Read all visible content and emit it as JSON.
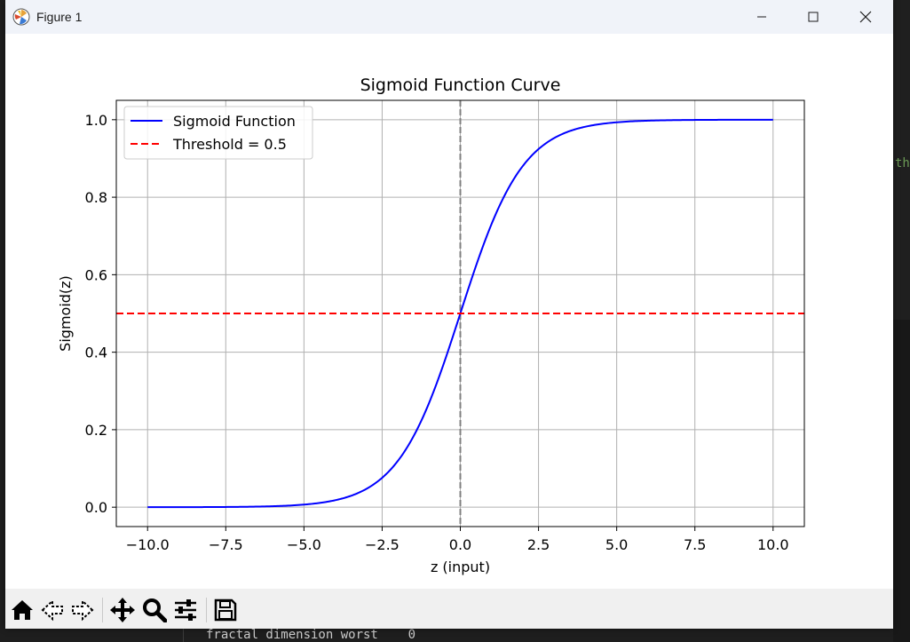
{
  "window": {
    "title": "Figure 1"
  },
  "background": {
    "code_fragment_right": "th",
    "code_fragment_bottom": "fractal dimension worst    0"
  },
  "toolbar": {
    "buttons": [
      "home-icon",
      "back-icon",
      "forward-icon",
      "pan-icon",
      "zoom-icon",
      "configure-subplots-icon",
      "save-icon"
    ]
  },
  "chart_data": {
    "type": "line",
    "title": "Sigmoid Function Curve",
    "xlabel": "z (input)",
    "ylabel": "Sigmoid(z)",
    "xlim": [
      -11,
      11
    ],
    "ylim": [
      -0.05,
      1.05
    ],
    "xticks": [
      -10.0,
      -7.5,
      -5.0,
      -2.5,
      0.0,
      2.5,
      5.0,
      7.5,
      10.0
    ],
    "xtick_labels": [
      "−10.0",
      "−7.5",
      "−5.0",
      "−2.5",
      "0.0",
      "2.5",
      "5.0",
      "7.5",
      "10.0"
    ],
    "yticks": [
      0.0,
      0.2,
      0.4,
      0.6,
      0.8,
      1.0
    ],
    "ytick_labels": [
      "0.0",
      "0.2",
      "0.4",
      "0.6",
      "0.8",
      "1.0"
    ],
    "grid": true,
    "legend_position": "top-left",
    "series": [
      {
        "name": "Sigmoid Function",
        "color": "#0000ff",
        "style": "solid",
        "function": "sigmoid",
        "x_range": [
          -10,
          10
        ]
      },
      {
        "name": "Threshold = 0.5",
        "color": "#ff0000",
        "style": "dashed",
        "type": "hline",
        "y": 0.5
      }
    ],
    "reference_lines": [
      {
        "type": "vline",
        "x": 0,
        "color": "#808080",
        "style": "dashed"
      }
    ]
  }
}
